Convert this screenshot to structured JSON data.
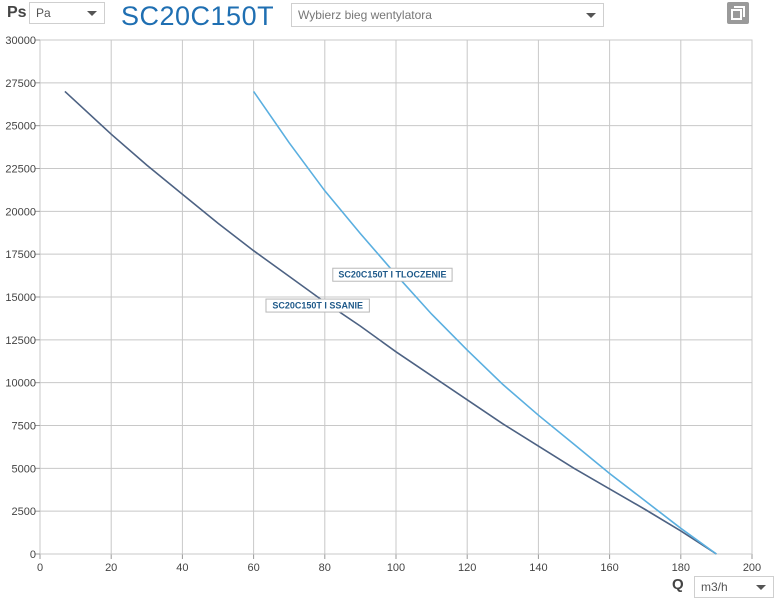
{
  "header": {
    "ps_label": "Ps",
    "pressure_unit": "Pa",
    "model": "SC20C150T",
    "speed_placeholder": "Wybierz bieg wentylatora"
  },
  "footer": {
    "q_label": "Q",
    "flow_unit": "m3/h"
  },
  "colors": {
    "ssanie": "#4d6283",
    "tloczenie": "#5aafe0",
    "grid": "#c8c8c8",
    "accent": "#1f6fb2"
  },
  "icons": {
    "copy": "copy-window-icon",
    "dropdown": "chevron-down-icon"
  },
  "chart_data": {
    "type": "line",
    "xlim": [
      0,
      200
    ],
    "ylim": [
      0,
      30000
    ],
    "x_ticks": [
      0,
      20,
      40,
      60,
      80,
      100,
      120,
      140,
      160,
      180,
      200
    ],
    "y_ticks": [
      0,
      2500,
      5000,
      7500,
      10000,
      12500,
      15000,
      17500,
      20000,
      22500,
      25000,
      27500,
      30000
    ],
    "grid": true,
    "series": [
      {
        "name": "SC20C150T I SSANIE",
        "points": [
          [
            7,
            27000
          ],
          [
            20,
            24500
          ],
          [
            30,
            22700
          ],
          [
            40,
            21000
          ],
          [
            50,
            19300
          ],
          [
            60,
            17700
          ],
          [
            70,
            16200
          ],
          [
            80,
            14700
          ],
          [
            90,
            13300
          ],
          [
            100,
            11800
          ],
          [
            110,
            10400
          ],
          [
            120,
            9000
          ],
          [
            130,
            7600
          ],
          [
            140,
            6300
          ],
          [
            150,
            5000
          ],
          [
            160,
            3800
          ],
          [
            170,
            2600
          ],
          [
            180,
            1350
          ],
          [
            190,
            0
          ]
        ],
        "label_at": [
          78,
          14500
        ]
      },
      {
        "name": "SC20C150T I TLOCZENIE",
        "points": [
          [
            60,
            27000
          ],
          [
            70,
            24000
          ],
          [
            80,
            21200
          ],
          [
            90,
            18700
          ],
          [
            100,
            16300
          ],
          [
            110,
            14000
          ],
          [
            120,
            11900
          ],
          [
            130,
            9900
          ],
          [
            140,
            8100
          ],
          [
            150,
            6400
          ],
          [
            160,
            4700
          ],
          [
            170,
            3100
          ],
          [
            180,
            1500
          ],
          [
            190,
            0
          ]
        ],
        "label_at": [
          99,
          16300
        ]
      }
    ]
  }
}
